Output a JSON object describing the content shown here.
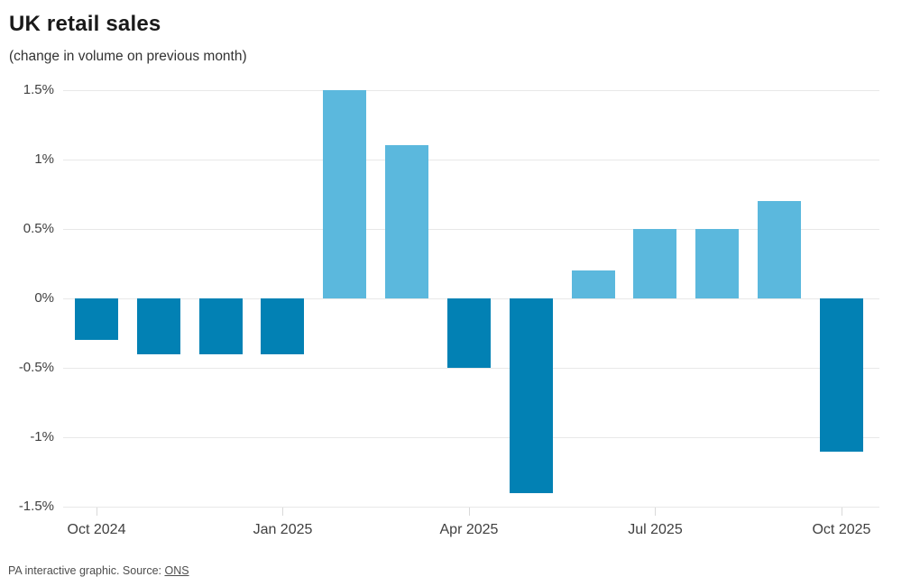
{
  "header": {
    "title": "UK retail sales",
    "subtitle": "(change in volume on previous month)"
  },
  "chart_data": {
    "type": "bar",
    "title": "UK retail sales",
    "subtitle": "(change in volume on previous month)",
    "categories": [
      "Oct 2024",
      "Nov 2024",
      "Dec 2024",
      "Jan 2025",
      "Feb 2025",
      "Mar 2025",
      "Apr 2025",
      "May 2025",
      "Jun 2025",
      "Jul 2025",
      "Aug 2025",
      "Sep 2025",
      "Oct 2025"
    ],
    "values": [
      -0.3,
      -0.4,
      -0.4,
      -0.4,
      1.5,
      1.1,
      -0.5,
      -1.4,
      0.2,
      0.5,
      0.5,
      0.7,
      -1.1
    ],
    "xlabel": "",
    "ylabel": "",
    "ylim": [
      -1.5,
      1.5
    ],
    "y_tick_values": [
      1.5,
      1,
      0.5,
      0,
      -0.5,
      -1,
      -1.5
    ],
    "y_tick_labels": [
      "1.5%",
      "1%",
      "0.5%",
      "0%",
      "-0.5%",
      "-1%",
      "-1.5%"
    ],
    "x_tick_indices": [
      0,
      3,
      6,
      9,
      12
    ],
    "x_tick_labels": [
      "Oct 2024",
      "Jan 2025",
      "Apr 2025",
      "Jul 2025",
      "Oct 2025"
    ],
    "grid": true,
    "legend": "none",
    "colors": {
      "positive_bar": "#5bb8dd",
      "negative_bar": "#0281b4",
      "gridline": "#e8e8e8",
      "axis_tick": "#d9d9d9"
    }
  },
  "footer": {
    "credit": "PA interactive graphic. Source: ",
    "source_link": "ONS"
  }
}
